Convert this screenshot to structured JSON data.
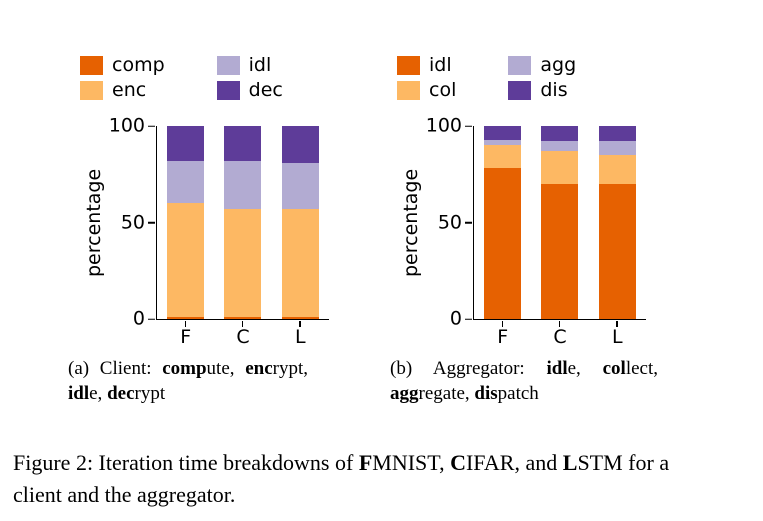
{
  "captions": {
    "a": [
      {
        "text": "(a) Client: ",
        "bold": false
      },
      {
        "text": "comp",
        "bold": true
      },
      {
        "text": "ute, ",
        "bold": false
      },
      {
        "text": "enc",
        "bold": true
      },
      {
        "text": "rypt, ",
        "bold": false
      },
      {
        "text": "idl",
        "bold": true
      },
      {
        "text": "e, ",
        "bold": false
      },
      {
        "text": "dec",
        "bold": true
      },
      {
        "text": "rypt",
        "bold": false
      }
    ],
    "b": [
      {
        "text": "(b) Aggregator: ",
        "bold": false
      },
      {
        "text": "idl",
        "bold": true
      },
      {
        "text": "e, ",
        "bold": false
      },
      {
        "text": "col",
        "bold": true
      },
      {
        "text": "lect, ",
        "bold": false
      },
      {
        "text": "agg",
        "bold": true
      },
      {
        "text": "regate, ",
        "bold": false
      },
      {
        "text": "dis",
        "bold": true
      },
      {
        "text": "patch",
        "bold": false
      }
    ],
    "figure": [
      {
        "text": "Figure 2: Iteration time breakdowns of ",
        "bold": false
      },
      {
        "text": "F",
        "bold": true
      },
      {
        "text": "MNIST, ",
        "bold": false
      },
      {
        "text": "C",
        "bold": true
      },
      {
        "text": "IFAR, and ",
        "bold": false
      },
      {
        "text": "L",
        "bold": true
      },
      {
        "text": "STM for a client and the aggregator.",
        "bold": false
      }
    ]
  },
  "chart_data": [
    {
      "type": "bar",
      "stacked": true,
      "title": "",
      "xlabel": "",
      "ylabel": "percentage",
      "ylim": [
        0,
        100
      ],
      "yticks": [
        0,
        50,
        100
      ],
      "grid": false,
      "legend_position": "top",
      "categories": [
        "F",
        "C",
        "L"
      ],
      "series": [
        {
          "name": "comp",
          "color": "#e66101",
          "values": [
            1,
            1,
            1
          ]
        },
        {
          "name": "enc",
          "color": "#fdb863",
          "values": [
            59,
            56,
            56
          ]
        },
        {
          "name": "idl",
          "color": "#b2abd2",
          "values": [
            22,
            25,
            24
          ]
        },
        {
          "name": "dec",
          "color": "#5e3c99",
          "values": [
            18,
            18,
            19
          ]
        }
      ],
      "legend_columns": [
        [
          "comp",
          "enc"
        ],
        [
          "idl",
          "dec"
        ]
      ]
    },
    {
      "type": "bar",
      "stacked": true,
      "title": "",
      "xlabel": "",
      "ylabel": "percentage",
      "ylim": [
        0,
        100
      ],
      "yticks": [
        0,
        50,
        100
      ],
      "grid": false,
      "legend_position": "top",
      "categories": [
        "F",
        "C",
        "L"
      ],
      "series": [
        {
          "name": "idl",
          "color": "#e66101",
          "values": [
            78,
            70,
            70
          ]
        },
        {
          "name": "col",
          "color": "#fdb863",
          "values": [
            12,
            17,
            15
          ]
        },
        {
          "name": "agg",
          "color": "#b2abd2",
          "values": [
            3,
            5,
            7
          ]
        },
        {
          "name": "dis",
          "color": "#5e3c99",
          "values": [
            7,
            8,
            8
          ]
        }
      ],
      "legend_columns": [
        [
          "idl",
          "col"
        ],
        [
          "agg",
          "dis"
        ]
      ]
    }
  ]
}
